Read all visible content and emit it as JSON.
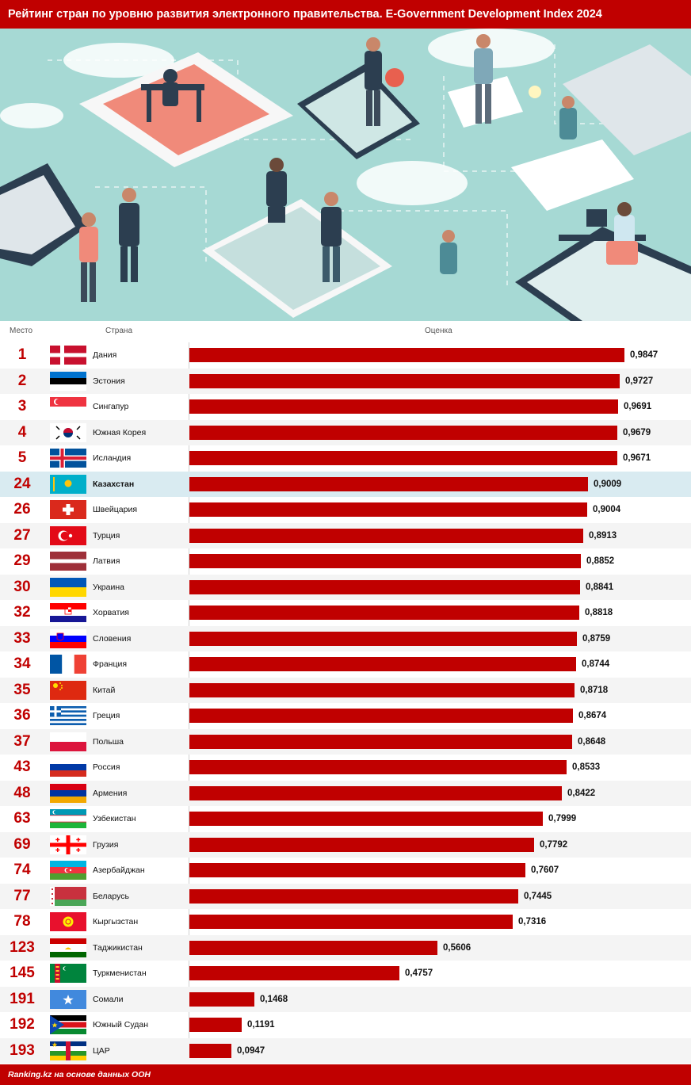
{
  "title": "Рейтинг стран по уровню развития электронного правительства. E-Government Development Index 2024",
  "footer": "Ranking.kz на основе данных ООН",
  "columns": {
    "rank": "Место",
    "country": "Страна",
    "score": "Оценка"
  },
  "colors": {
    "accent": "#c00000",
    "highlight_row": "#d9ebf1"
  },
  "chart_data": {
    "type": "bar",
    "orientation": "horizontal",
    "title": "Рейтинг стран по уровню развития электронного правительства. E-Government Development Index 2024",
    "xlim": [
      0,
      1
    ],
    "grid": false,
    "rows": [
      {
        "rank": "1",
        "country": "Дания",
        "value": "0,9847",
        "flag": "dk"
      },
      {
        "rank": "2",
        "country": "Эстония",
        "value": "0,9727",
        "flag": "ee"
      },
      {
        "rank": "3",
        "country": "Сингапур",
        "value": "0,9691",
        "flag": "sg"
      },
      {
        "rank": "4",
        "country": "Южная Корея",
        "value": "0,9679",
        "flag": "kr"
      },
      {
        "rank": "5",
        "country": "Исландия",
        "value": "0,9671",
        "flag": "is"
      },
      {
        "rank": "24",
        "country": "Казахстан",
        "value": "0,9009",
        "flag": "kz",
        "highlight": true
      },
      {
        "rank": "26",
        "country": "Швейцария",
        "value": "0,9004",
        "flag": "ch"
      },
      {
        "rank": "27",
        "country": "Турция",
        "value": "0,8913",
        "flag": "tr"
      },
      {
        "rank": "29",
        "country": "Латвия",
        "value": "0,8852",
        "flag": "lv"
      },
      {
        "rank": "30",
        "country": "Украина",
        "value": "0,8841",
        "flag": "ua"
      },
      {
        "rank": "32",
        "country": "Хорватия",
        "value": "0,8818",
        "flag": "hr"
      },
      {
        "rank": "33",
        "country": "Словения",
        "value": "0,8759",
        "flag": "si"
      },
      {
        "rank": "34",
        "country": "Франция",
        "value": "0,8744",
        "flag": "fr"
      },
      {
        "rank": "35",
        "country": "Китай",
        "value": "0,8718",
        "flag": "cn"
      },
      {
        "rank": "36",
        "country": "Греция",
        "value": "0,8674",
        "flag": "gr"
      },
      {
        "rank": "37",
        "country": "Польша",
        "value": "0,8648",
        "flag": "pl"
      },
      {
        "rank": "43",
        "country": "Россия",
        "value": "0,8533",
        "flag": "ru"
      },
      {
        "rank": "48",
        "country": "Армения",
        "value": "0,8422",
        "flag": "am"
      },
      {
        "rank": "63",
        "country": "Узбекистан",
        "value": "0,7999",
        "flag": "uz"
      },
      {
        "rank": "69",
        "country": "Грузия",
        "value": "0,7792",
        "flag": "ge"
      },
      {
        "rank": "74",
        "country": "Азербайджан",
        "value": "0,7607",
        "flag": "az"
      },
      {
        "rank": "77",
        "country": "Беларусь",
        "value": "0,7445",
        "flag": "by"
      },
      {
        "rank": "78",
        "country": "Кыргызстан",
        "value": "0,7316",
        "flag": "kg"
      },
      {
        "rank": "123",
        "country": "Таджикистан",
        "value": "0,5606",
        "flag": "tj"
      },
      {
        "rank": "145",
        "country": "Туркменистан",
        "value": "0,4757",
        "flag": "tm"
      },
      {
        "rank": "191",
        "country": "Сомали",
        "value": "0,1468",
        "flag": "so"
      },
      {
        "rank": "192",
        "country": "Южный Судан",
        "value": "0,1191",
        "flag": "ss"
      },
      {
        "rank": "193",
        "country": "ЦАР",
        "value": "0,0947",
        "flag": "cf"
      }
    ]
  }
}
